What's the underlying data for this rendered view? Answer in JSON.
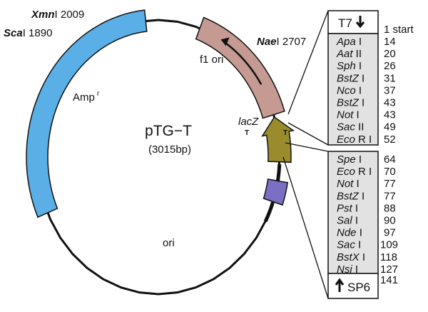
{
  "plasmid": {
    "name": "pTG−T",
    "size": "(3015bp)"
  },
  "features": {
    "amp": {
      "label": "Amp",
      "sup": "r",
      "color": "#5aafe6"
    },
    "f1": {
      "label": "f1 ori",
      "color": "#c49a92"
    },
    "lacz": {
      "label": "lacZ",
      "color": "#9a8c2c"
    },
    "mcs": {
      "color": "#7b6fc4"
    },
    "ori": {
      "label": "ori"
    },
    "terminators": [
      "T",
      "T"
    ]
  },
  "sites": [
    {
      "enzyme": "Xmn",
      "suffix": "I",
      "pos": "2009"
    },
    {
      "enzyme": "Sca",
      "suffix": "I",
      "pos": "1890"
    },
    {
      "enzyme": "Nae",
      "suffix": "I",
      "pos": "2707"
    }
  ],
  "mcs_table": {
    "t7": "T7",
    "t7_pos": "1 start",
    "group1": [
      {
        "e": "Apa",
        "s": "I",
        "p": "14"
      },
      {
        "e": "Aat",
        "s": "II",
        "p": "20"
      },
      {
        "e": "Sph",
        "s": "I",
        "p": "26"
      },
      {
        "e": "BstZ",
        "s": "I",
        "p": "31"
      },
      {
        "e": "Nco",
        "s": "I",
        "p": "37"
      },
      {
        "e": "BstZ",
        "s": "I",
        "p": "43"
      },
      {
        "e": "Not",
        "s": "I",
        "p": "43"
      },
      {
        "e": "Sac",
        "s": "II",
        "p": "49"
      },
      {
        "e": "Eco",
        "s": "R I",
        "p": "52"
      }
    ],
    "group2": [
      {
        "e": "Spe",
        "s": "I",
        "p": "64"
      },
      {
        "e": "Eco",
        "s": "R I",
        "p": "70"
      },
      {
        "e": "Not",
        "s": "I",
        "p": "77"
      },
      {
        "e": "BstZ",
        "s": "I",
        "p": "77"
      },
      {
        "e": "Pst",
        "s": "I",
        "p": "88"
      },
      {
        "e": "Sal",
        "s": "I",
        "p": "90"
      },
      {
        "e": "Nde",
        "s": "I",
        "p": "97"
      },
      {
        "e": "Sac",
        "s": "I",
        "p": "109"
      },
      {
        "e": "BstX",
        "s": "I",
        "p": "118"
      },
      {
        "e": "Nsi",
        "s": "I",
        "p": "127"
      }
    ],
    "sp6": "SP6",
    "sp6_pos": "141"
  }
}
